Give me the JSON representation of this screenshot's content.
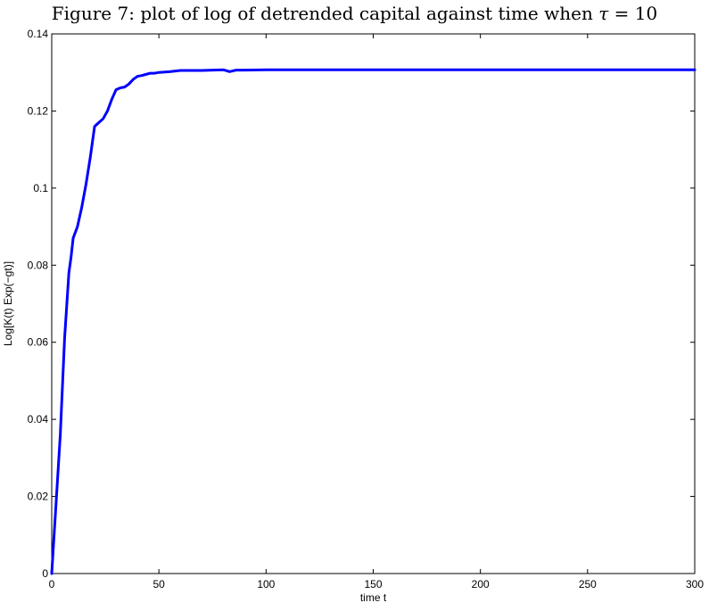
{
  "figure": {
    "caption_prefix": "Figure 7: plot of log of detrended capital against time when ",
    "caption_symbol": "τ",
    "caption_suffix": " = 10"
  },
  "chart_data": {
    "type": "line",
    "title": "",
    "xlabel": "time t",
    "ylabel": "Log[K(t) Exp(−gt)]",
    "xlim": [
      0,
      300
    ],
    "ylim": [
      0,
      0.14
    ],
    "xticks": [
      0,
      50,
      100,
      150,
      200,
      250,
      300
    ],
    "xtick_labels": [
      "0",
      "50",
      "100",
      "150",
      "200",
      "250",
      "300"
    ],
    "yticks": [
      0,
      0.02,
      0.04,
      0.06,
      0.08,
      0.1,
      0.12,
      0.14
    ],
    "ytick_labels": [
      "0",
      "0.02",
      "0.04",
      "0.06",
      "0.08",
      "0.1",
      "0.12",
      "0.14"
    ],
    "grid": false,
    "line_color": "#0000ff",
    "series": [
      {
        "x": [
          0,
          2,
          4,
          6,
          8,
          9,
          10,
          12,
          14,
          16,
          18,
          20,
          22,
          24,
          26,
          28,
          30,
          32,
          34,
          36,
          38,
          40,
          42,
          44,
          46,
          48,
          50,
          55,
          60,
          70,
          80,
          83,
          86,
          90,
          100,
          110,
          150,
          200,
          250,
          300
        ],
        "y": [
          0,
          0.018,
          0.036,
          0.061,
          0.078,
          0.082,
          0.087,
          0.09,
          0.095,
          0.101,
          0.108,
          0.116,
          0.117,
          0.118,
          0.12,
          0.123,
          0.1255,
          0.126,
          0.1262,
          0.127,
          0.1282,
          0.129,
          0.1292,
          0.1295,
          0.1298,
          0.1298,
          0.13,
          0.1302,
          0.1305,
          0.1305,
          0.1307,
          0.1302,
          0.1306,
          0.1306,
          0.1307,
          0.1307,
          0.1307,
          0.1307,
          0.1307,
          0.1307
        ]
      }
    ]
  }
}
